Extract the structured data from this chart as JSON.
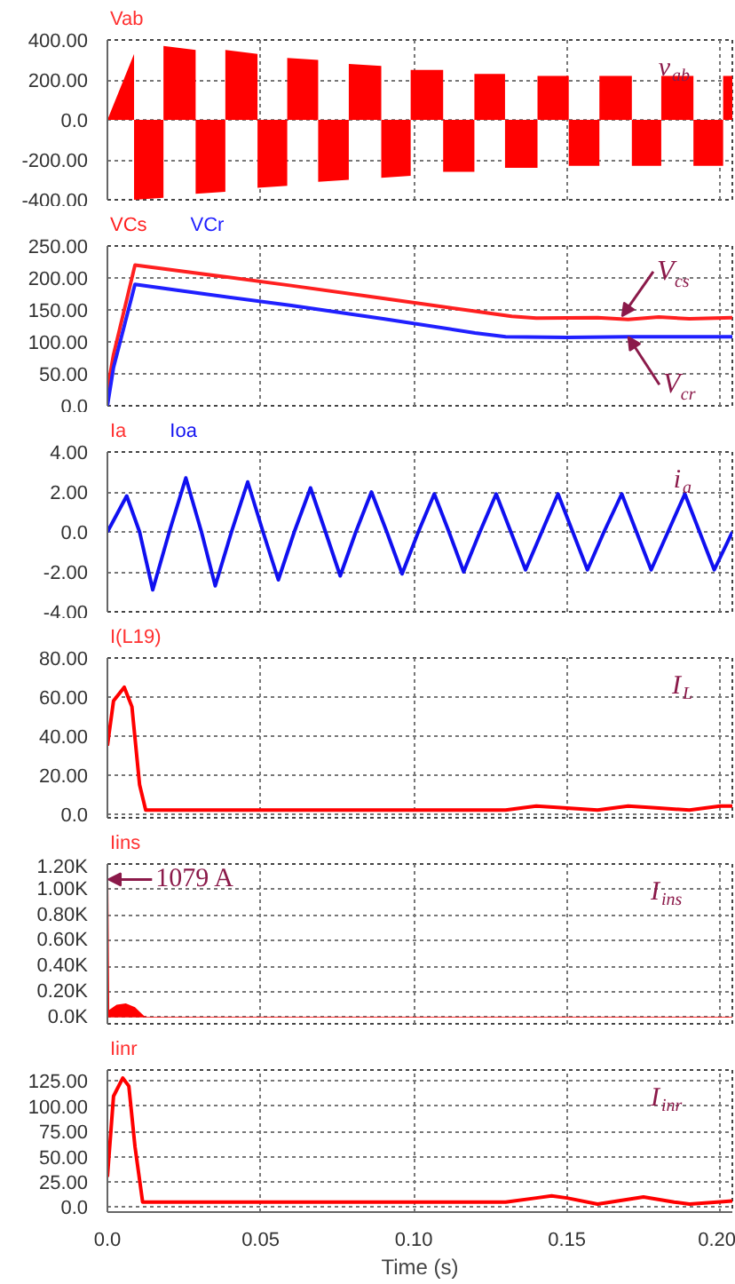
{
  "chart_data": [
    {
      "type": "area",
      "title": "Vab",
      "xlim": [
        0,
        0.204
      ],
      "ylim": [
        -400,
        400
      ],
      "grid": true,
      "tick_labels": "y",
      "xticks": [
        {
          "value": 0,
          "label": null
        },
        {
          "value": 0.05,
          "label": null
        },
        {
          "value": 0.1,
          "label": null
        },
        {
          "value": 0.15,
          "label": null
        },
        {
          "value": 0.2,
          "label": null
        }
      ],
      "yticks": [
        {
          "value": -400,
          "label": "-400.00"
        },
        {
          "value": -200,
          "label": "-200.00"
        },
        {
          "value": 0,
          "label": "0.0"
        },
        {
          "value": 200,
          "label": "200.00"
        },
        {
          "value": 400,
          "label": "400.00"
        }
      ],
      "annotations": [
        "v$_{ab}$"
      ],
      "series": [
        {
          "color": "#ff0000",
          "x": [
            0,
            0.0087,
            0.0087,
            0.0183,
            0.0183,
            0.0288,
            0.0288,
            0.0385,
            0.0385,
            0.049,
            0.049,
            0.0587,
            0.0587,
            0.0688,
            0.0688,
            0.0788,
            0.0788,
            0.0894,
            0.0894,
            0.099,
            0.099,
            0.1096,
            0.1096,
            0.1198,
            0.1198,
            0.1298,
            0.1298,
            0.1404,
            0.1404,
            0.1506,
            0.1506,
            0.1606,
            0.1606,
            0.1712,
            0.1712,
            0.1808,
            0.1808,
            0.1913,
            0.1913,
            0.201,
            0.201,
            0.204
          ],
          "values": [
            0,
            330,
            -400,
            -390,
            370,
            350,
            -370,
            -360,
            350,
            330,
            -340,
            -330,
            310,
            300,
            -310,
            -300,
            280,
            270,
            -290,
            -280,
            250,
            250,
            -260,
            -260,
            230,
            230,
            -240,
            -240,
            220,
            220,
            -230,
            -230,
            220,
            220,
            -230,
            -230,
            220,
            220,
            -230,
            -230,
            220,
            220
          ]
        }
      ]
    },
    {
      "type": "line",
      "xlim": [
        0,
        0.204
      ],
      "ylim": [
        0,
        250
      ],
      "grid": true,
      "tick_labels": "y",
      "legend": "top left",
      "xticks": [
        {
          "value": 0,
          "label": null
        },
        {
          "value": 0.05,
          "label": null
        },
        {
          "value": 0.1,
          "label": null
        },
        {
          "value": 0.15,
          "label": null
        },
        {
          "value": 0.2,
          "label": null
        }
      ],
      "yticks": [
        {
          "value": 0,
          "label": "0.0"
        },
        {
          "value": 50,
          "label": "50.00"
        },
        {
          "value": 100,
          "label": "100.00"
        },
        {
          "value": 150,
          "label": "150.00"
        },
        {
          "value": 200,
          "label": "200.00"
        },
        {
          "value": 250,
          "label": "250.00"
        }
      ],
      "annotations": [
        {
          "text": "V$_{cs}$",
          "x": 0.168,
          "y": 140
        },
        {
          "text": "V$_{cr}$",
          "x": 0.17,
          "y": 108
        }
      ],
      "series": [
        {
          "name": "VCs",
          "color": "#ff2020",
          "x": [
            0,
            0.002,
            0.009,
            0.03,
            0.06,
            0.09,
            0.12,
            0.132,
            0.14,
            0.16,
            0.17,
            0.18,
            0.19,
            0.204
          ],
          "values": [
            25,
            80,
            220,
            207,
            188,
            168,
            148,
            140,
            137,
            138,
            135,
            139,
            136,
            138
          ]
        },
        {
          "name": "VCr",
          "color": "#2020ff",
          "x": [
            0,
            0.002,
            0.009,
            0.03,
            0.06,
            0.09,
            0.12,
            0.13,
            0.15,
            0.17,
            0.204
          ],
          "values": [
            0,
            60,
            190,
            176,
            157,
            136,
            114,
            108,
            107,
            108,
            108
          ]
        }
      ]
    },
    {
      "type": "line",
      "title": "Ia",
      "xlim": [
        0,
        0.204
      ],
      "ylim": [
        -4,
        4
      ],
      "grid": true,
      "tick_labels": "y",
      "legend": "top left",
      "xticks": [
        {
          "value": 0,
          "label": null
        },
        {
          "value": 0.05,
          "label": null
        },
        {
          "value": 0.1,
          "label": null
        },
        {
          "value": 0.15,
          "label": null
        },
        {
          "value": 0.2,
          "label": null
        }
      ],
      "yticks": [
        {
          "value": -4,
          "label": "-4.00"
        },
        {
          "value": -2,
          "label": "-2.00"
        },
        {
          "value": 0,
          "label": "0.0"
        },
        {
          "value": 2,
          "label": "2.00"
        },
        {
          "value": 4,
          "label": "4.00"
        }
      ],
      "annotations": [
        "i$_{a}$"
      ],
      "series": [
        {
          "name": "Ioa",
          "color": "#1010f0",
          "x": [
            0,
            0.0063,
            0.0105,
            0.0148,
            0.0202,
            0.0256,
            0.0307,
            0.0352,
            0.0405,
            0.0458,
            0.0508,
            0.0558,
            0.061,
            0.0663,
            0.0712,
            0.076,
            0.0811,
            0.0862,
            0.0912,
            0.0962,
            0.1015,
            0.1067,
            0.1115,
            0.1163,
            0.1216,
            0.1269,
            0.1317,
            0.1365,
            0.1418,
            0.1471,
            0.1519,
            0.1567,
            0.1621,
            0.1679,
            0.1727,
            0.1775,
            0.183,
            0.1885,
            0.1933,
            0.1981,
            0.204
          ],
          "values": [
            0,
            1.8,
            0,
            -2.9,
            0,
            2.7,
            0,
            -2.7,
            0,
            2.5,
            0,
            -2.4,
            0,
            2.2,
            0,
            -2.2,
            0,
            2.0,
            0,
            -2.1,
            0,
            1.9,
            0,
            -2.0,
            0,
            1.9,
            0,
            -1.9,
            0,
            1.9,
            0,
            -1.9,
            0,
            1.9,
            0,
            -1.9,
            0,
            1.9,
            0,
            -1.9,
            0
          ]
        }
      ]
    },
    {
      "type": "line",
      "title": "I(L19)",
      "xlim": [
        0,
        0.204
      ],
      "ylim": [
        -2,
        80
      ],
      "grid": true,
      "tick_labels": "y",
      "xticks": [
        {
          "value": 0,
          "label": null
        },
        {
          "value": 0.05,
          "label": null
        },
        {
          "value": 0.1,
          "label": null
        },
        {
          "value": 0.15,
          "label": null
        },
        {
          "value": 0.2,
          "label": null
        }
      ],
      "yticks": [
        {
          "value": 0,
          "label": "0.0"
        },
        {
          "value": 20,
          "label": "20.00"
        },
        {
          "value": 40,
          "label": "40.00"
        },
        {
          "value": 60,
          "label": "60.00"
        },
        {
          "value": 80,
          "label": "80.00"
        }
      ],
      "annotations": [
        "I$_{L}$"
      ],
      "series": [
        {
          "color": "#ff0000",
          "x": [
            0,
            0.002,
            0.0055,
            0.008,
            0.0105,
            0.0125,
            0.05,
            0.1,
            0.13,
            0.14,
            0.15,
            0.16,
            0.17,
            0.18,
            0.19,
            0.2,
            0.204
          ],
          "values": [
            35,
            58,
            65,
            55,
            15,
            2,
            2,
            2,
            2,
            4,
            3,
            2,
            4,
            3,
            2,
            4,
            4
          ]
        }
      ]
    },
    {
      "type": "area",
      "title": "Iins",
      "xlim": [
        0,
        0.204
      ],
      "ylim": [
        -50,
        1200
      ],
      "grid": true,
      "tick_labels": "y",
      "xticks": [
        {
          "value": 0,
          "label": null
        },
        {
          "value": 0.05,
          "label": null
        },
        {
          "value": 0.1,
          "label": null
        },
        {
          "value": 0.15,
          "label": null
        },
        {
          "value": 0.2,
          "label": null
        }
      ],
      "yticks": [
        {
          "value": 0,
          "label": "0.0K"
        },
        {
          "value": 200,
          "label": "0.20K"
        },
        {
          "value": 400,
          "label": "0.40K"
        },
        {
          "value": 600,
          "label": "0.60K"
        },
        {
          "value": 800,
          "label": "0.80K"
        },
        {
          "value": 1000,
          "label": "1.00K"
        },
        {
          "value": 1200,
          "label": "1.20K"
        }
      ],
      "annotations": [
        {
          "text": "1079 A",
          "x": 0.0003,
          "y": 1079
        },
        "I$_{ins}$"
      ],
      "series": [
        {
          "color": "#ff0000",
          "x": [
            0,
            0.0003,
            0.0006,
            0.003,
            0.006,
            0.009,
            0.012,
            0.013,
            0.204
          ],
          "values": [
            0,
            1079,
            60,
            100,
            110,
            80,
            10,
            5,
            5
          ]
        }
      ]
    },
    {
      "type": "line",
      "title": "Iinr",
      "xlabel": "Time (s)",
      "xlim": [
        0,
        0.204
      ],
      "ylim": [
        -5,
        136
      ],
      "grid": true,
      "xticks": [
        {
          "value": 0,
          "label": "0.0"
        },
        {
          "value": 0.05,
          "label": "0.05"
        },
        {
          "value": 0.1,
          "label": "0.10"
        },
        {
          "value": 0.15,
          "label": "0.15"
        },
        {
          "value": 0.2,
          "label": "0.20"
        }
      ],
      "yticks": [
        {
          "value": 0,
          "label": "0.0"
        },
        {
          "value": 25,
          "label": "25.00"
        },
        {
          "value": 50,
          "label": "50.00"
        },
        {
          "value": 75,
          "label": "75.00"
        },
        {
          "value": 100,
          "label": "100.00"
        },
        {
          "value": 125,
          "label": "125.00"
        }
      ],
      "annotations": [
        "I$_{inr}$"
      ],
      "series": [
        {
          "color": "#ff0000",
          "x": [
            0,
            0.002,
            0.005,
            0.007,
            0.009,
            0.0115,
            0.05,
            0.13,
            0.14,
            0.145,
            0.15,
            0.16,
            0.175,
            0.185,
            0.19,
            0.204
          ],
          "values": [
            30,
            110,
            128,
            120,
            60,
            5,
            5,
            5,
            9,
            11,
            9,
            3,
            10,
            5,
            3,
            6
          ]
        }
      ]
    }
  ]
}
